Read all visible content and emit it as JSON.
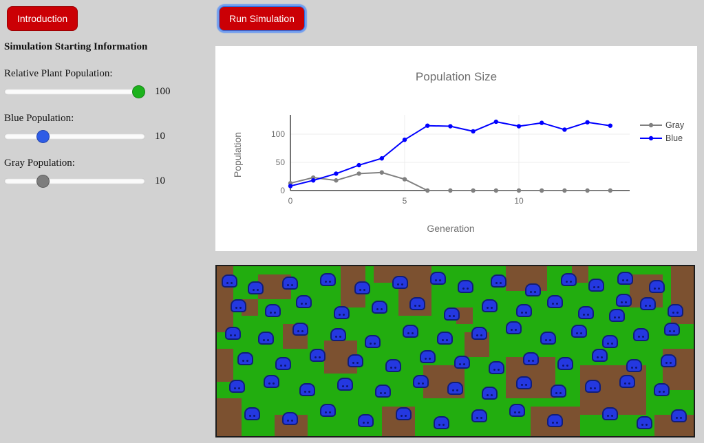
{
  "header": {
    "introduction_label": "Introduction",
    "run_simulation_label": "Run Simulation"
  },
  "sidebar": {
    "title": "Simulation Starting Information",
    "sliders": [
      {
        "label": "Relative Plant Population:",
        "value": 100,
        "min": 0,
        "max": 100,
        "color": "#1cb21c"
      },
      {
        "label": "Blue Population:",
        "value": 10,
        "min": 0,
        "max": 40,
        "color": "#2e5ce6"
      },
      {
        "label": "Gray Population:",
        "value": 10,
        "min": 0,
        "max": 40,
        "color": "#7d7d7d"
      }
    ]
  },
  "chart_data": {
    "type": "line",
    "title": "Population Size",
    "xlabel": "Generation",
    "ylabel": "Population",
    "x": [
      0,
      1,
      2,
      3,
      4,
      5,
      6,
      7,
      8,
      9,
      10,
      11,
      12,
      13,
      14
    ],
    "series": [
      {
        "name": "Gray",
        "color": "#808080",
        "values": [
          13,
          23,
          18,
          30,
          32,
          20,
          0,
          0,
          0,
          0,
          0,
          0,
          0,
          0,
          0
        ]
      },
      {
        "name": "Blue",
        "color": "#0000ff",
        "values": [
          8,
          18,
          30,
          45,
          57,
          90,
          115,
          114,
          105,
          122,
          114,
          120,
          108,
          121,
          115
        ]
      }
    ],
    "xticks": [
      0,
      5,
      10
    ],
    "yticks": [
      0,
      50,
      100
    ],
    "xlim": [
      -0.5,
      14.9
    ],
    "ylim": [
      -6,
      134
    ],
    "grid": true,
    "legend_position": "right"
  },
  "simulation": {
    "field_color": "#22ad0f",
    "patch_color": "#7c5130",
    "bug_color": "#2438e0",
    "bug_border_color": "#101e7a",
    "patches": [
      [
        0,
        0,
        24,
        96
      ],
      [
        36,
        48,
        24,
        24
      ],
      [
        60,
        12,
        48,
        36
      ],
      [
        96,
        84,
        36,
        36
      ],
      [
        180,
        0,
        36,
        60
      ],
      [
        228,
        0,
        84,
        24
      ],
      [
        264,
        24,
        48,
        48
      ],
      [
        348,
        60,
        24,
        24
      ],
      [
        420,
        0,
        60,
        36
      ],
      [
        516,
        0,
        24,
        24
      ],
      [
        600,
        12,
        48,
        48
      ],
      [
        660,
        0,
        33,
        84
      ],
      [
        0,
        120,
        24,
        48
      ],
      [
        156,
        108,
        48,
        48
      ],
      [
        300,
        144,
        60,
        48
      ],
      [
        360,
        96,
        36,
        36
      ],
      [
        420,
        132,
        72,
        60
      ],
      [
        528,
        144,
        96,
        72
      ],
      [
        648,
        120,
        45,
        60
      ],
      [
        0,
        192,
        36,
        55
      ],
      [
        84,
        216,
        48,
        31
      ],
      [
        240,
        204,
        48,
        43
      ],
      [
        456,
        204,
        72,
        43
      ],
      [
        636,
        216,
        57,
        31
      ]
    ],
    "bugs": [
      [
        7,
        12
      ],
      [
        45,
        22
      ],
      [
        95,
        15
      ],
      [
        150,
        10
      ],
      [
        200,
        22
      ],
      [
        255,
        14
      ],
      [
        310,
        8
      ],
      [
        350,
        20
      ],
      [
        398,
        12
      ],
      [
        448,
        25
      ],
      [
        500,
        10
      ],
      [
        540,
        18
      ],
      [
        582,
        8
      ],
      [
        628,
        20
      ],
      [
        580,
        40
      ],
      [
        20,
        48
      ],
      [
        70,
        55
      ],
      [
        115,
        42
      ],
      [
        170,
        58
      ],
      [
        225,
        50
      ],
      [
        280,
        45
      ],
      [
        330,
        60
      ],
      [
        385,
        48
      ],
      [
        435,
        55
      ],
      [
        480,
        42
      ],
      [
        525,
        58
      ],
      [
        570,
        62
      ],
      [
        615,
        45
      ],
      [
        655,
        55
      ],
      [
        12,
        88
      ],
      [
        60,
        95
      ],
      [
        110,
        82
      ],
      [
        165,
        90
      ],
      [
        215,
        100
      ],
      [
        270,
        85
      ],
      [
        320,
        95
      ],
      [
        370,
        88
      ],
      [
        420,
        80
      ],
      [
        470,
        95
      ],
      [
        515,
        85
      ],
      [
        560,
        100
      ],
      [
        605,
        90
      ],
      [
        650,
        82
      ],
      [
        30,
        125
      ],
      [
        85,
        132
      ],
      [
        135,
        120
      ],
      [
        190,
        128
      ],
      [
        245,
        135
      ],
      [
        295,
        122
      ],
      [
        345,
        130
      ],
      [
        395,
        138
      ],
      [
        445,
        125
      ],
      [
        495,
        132
      ],
      [
        545,
        120
      ],
      [
        595,
        135
      ],
      [
        645,
        128
      ],
      [
        18,
        165
      ],
      [
        68,
        158
      ],
      [
        120,
        170
      ],
      [
        175,
        162
      ],
      [
        230,
        172
      ],
      [
        285,
        158
      ],
      [
        335,
        168
      ],
      [
        385,
        175
      ],
      [
        435,
        160
      ],
      [
        485,
        172
      ],
      [
        535,
        165
      ],
      [
        585,
        158
      ],
      [
        635,
        170
      ],
      [
        40,
        205
      ],
      [
        95,
        212
      ],
      [
        150,
        200
      ],
      [
        205,
        215
      ],
      [
        260,
        205
      ],
      [
        315,
        218
      ],
      [
        370,
        208
      ],
      [
        425,
        200
      ],
      [
        480,
        215
      ],
      [
        560,
        205
      ],
      [
        610,
        218
      ],
      [
        660,
        208
      ]
    ]
  }
}
